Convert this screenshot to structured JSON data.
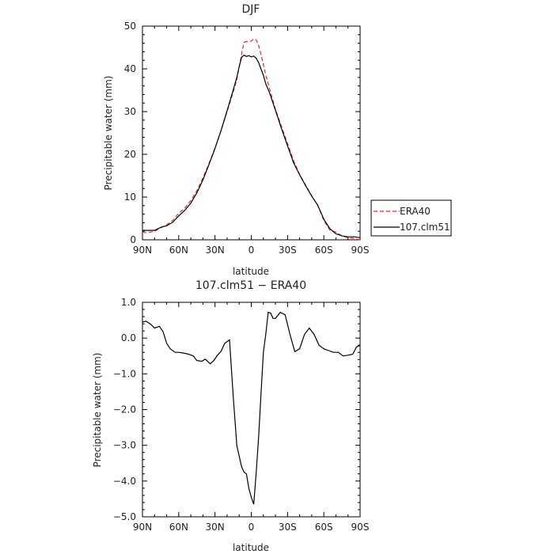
{
  "chart_data": [
    {
      "type": "line",
      "title": "DJF",
      "xlabel": "latitude",
      "ylabel": "Precipitable water (mm)",
      "xlim": [
        90,
        -90
      ],
      "ylim": [
        0,
        50
      ],
      "x_tick_values": [
        90,
        60,
        30,
        0,
        -30,
        -60,
        -90
      ],
      "x_tick_labels": [
        "90N",
        "60N",
        "30N",
        "0",
        "30S",
        "60S",
        "90S"
      ],
      "y_tick_values": [
        0,
        10,
        20,
        30,
        40,
        50
      ],
      "y_tick_labels": [
        "0",
        "10",
        "20",
        "30",
        "40",
        "50"
      ],
      "grid": false,
      "legend_position": "right",
      "series": [
        {
          "name": "ERA40",
          "color": "#e8282a",
          "dash": "dashed",
          "x": [
            90,
            85,
            80,
            75,
            70,
            65,
            60,
            55,
            50,
            45,
            40,
            35,
            30,
            25,
            20,
            15,
            12,
            10,
            8,
            6,
            4,
            2,
            0,
            -2,
            -4,
            -6,
            -8,
            -10,
            -12,
            -15,
            -20,
            -25,
            -30,
            -35,
            -40,
            -45,
            -50,
            -55,
            -60,
            -65,
            -70,
            -75,
            -80,
            -85,
            -90
          ],
          "y": [
            1.7,
            1.7,
            2.0,
            2.8,
            3.5,
            4.5,
            6.2,
            7.4,
            9.2,
            11.5,
            14.5,
            17.8,
            21.5,
            25.5,
            30.0,
            34.5,
            37.5,
            40.5,
            43.5,
            46.2,
            46.4,
            46.4,
            46.5,
            47.0,
            46.8,
            45.5,
            43.5,
            41.0,
            38.5,
            35.5,
            30.5,
            26.5,
            22.5,
            18.5,
            15.3,
            12.8,
            10.3,
            8.0,
            4.5,
            2.3,
            1.8,
            0.9,
            0.5,
            0.3,
            0.0
          ]
        },
        {
          "name": "107.clm51",
          "color": "#000000",
          "dash": "solid",
          "x": [
            90,
            85,
            80,
            75,
            70,
            65,
            60,
            55,
            50,
            45,
            40,
            35,
            30,
            25,
            20,
            15,
            12,
            10,
            8,
            6,
            4,
            2,
            0,
            -2,
            -4,
            -6,
            -8,
            -10,
            -12,
            -15,
            -20,
            -25,
            -30,
            -35,
            -40,
            -45,
            -50,
            -55,
            -60,
            -65,
            -70,
            -75,
            -80,
            -85,
            -90
          ],
          "y": [
            2.2,
            2.2,
            2.2,
            2.9,
            3.3,
            4.1,
            5.6,
            6.9,
            8.6,
            11.0,
            14.0,
            17.6,
            21.4,
            25.6,
            30.2,
            35.0,
            38.0,
            40.5,
            42.7,
            43.2,
            42.9,
            43.1,
            42.8,
            43.0,
            42.5,
            41.5,
            40.0,
            38.5,
            36.5,
            34.5,
            30.3,
            26.0,
            22.0,
            18.0,
            15.2,
            12.6,
            10.2,
            8.1,
            4.8,
            2.6,
            1.4,
            0.9,
            0.7,
            0.7,
            0.5
          ]
        }
      ]
    },
    {
      "type": "line",
      "title": "107.clm51 − ERA40",
      "xlabel": "latitude",
      "ylabel": "Precipitable water (mm)",
      "xlim": [
        90,
        -90
      ],
      "ylim": [
        -5.0,
        1.0
      ],
      "x_tick_values": [
        90,
        60,
        30,
        0,
        -30,
        -60,
        -90
      ],
      "x_tick_labels": [
        "90N",
        "60N",
        "30N",
        "0",
        "30S",
        "60S",
        "90S"
      ],
      "y_tick_values": [
        -5.0,
        -4.0,
        -3.0,
        -2.0,
        -1.0,
        0.0,
        1.0
      ],
      "y_tick_labels": [
        "−5.0",
        "−4.0",
        "−3.0",
        "−2.0",
        "−1.0",
        "0.0",
        "1.0"
      ],
      "grid": false,
      "series": [
        {
          "color": "#000000",
          "dash": "solid",
          "x": [
            90,
            87,
            83,
            80,
            76,
            73,
            70,
            67,
            63,
            60,
            56,
            52,
            48,
            45,
            41,
            38,
            34,
            31,
            28,
            25,
            22,
            18,
            15,
            12,
            10,
            8,
            6,
            4,
            2,
            0,
            -2,
            -4,
            -6,
            -8,
            -10,
            -12,
            -14,
            -16,
            -18,
            -20,
            -24,
            -28,
            -32,
            -36,
            -40,
            -44,
            -48,
            -52,
            -56,
            -60,
            -64,
            -68,
            -72,
            -76,
            -80,
            -84,
            -87,
            -90
          ],
          "y": [
            0.45,
            0.47,
            0.38,
            0.28,
            0.33,
            0.18,
            -0.15,
            -0.3,
            -0.4,
            -0.4,
            -0.42,
            -0.45,
            -0.5,
            -0.63,
            -0.65,
            -0.59,
            -0.72,
            -0.63,
            -0.48,
            -0.37,
            -0.15,
            -0.05,
            -1.6,
            -3.0,
            -3.3,
            -3.6,
            -3.75,
            -3.8,
            -4.2,
            -4.45,
            -4.65,
            -3.8,
            -2.8,
            -1.6,
            -0.4,
            0.1,
            0.72,
            0.7,
            0.55,
            0.55,
            0.72,
            0.65,
            0.1,
            -0.38,
            -0.3,
            0.1,
            0.28,
            0.1,
            -0.2,
            -0.3,
            -0.35,
            -0.4,
            -0.4,
            -0.5,
            -0.48,
            -0.45,
            -0.25,
            -0.2
          ]
        }
      ]
    }
  ]
}
